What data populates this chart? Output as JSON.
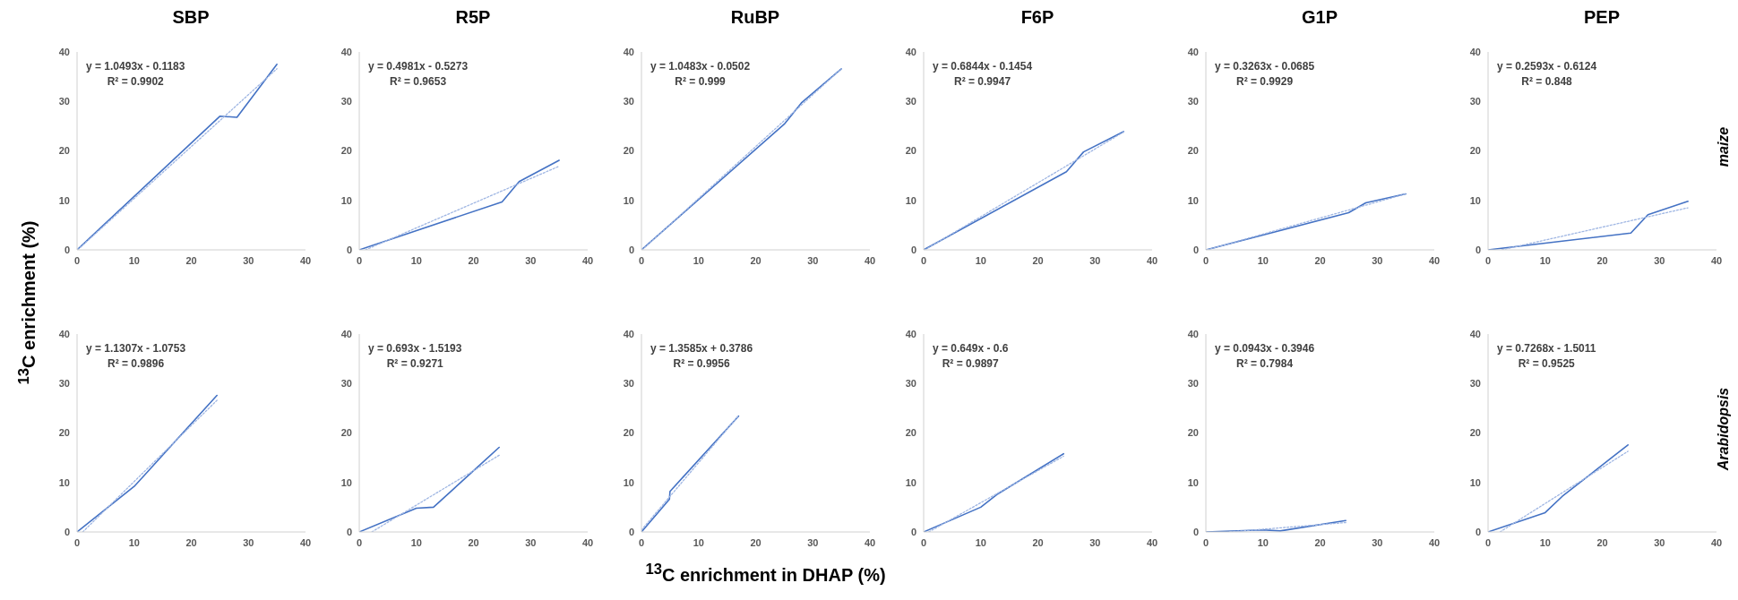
{
  "chart_data": [
    {
      "type": "line",
      "title": "SBP",
      "ylabel": "$^{13}$C enrichment (%)",
      "xlim": [
        0,
        40
      ],
      "xticks": [
        0,
        10,
        20,
        30,
        40
      ],
      "ylim": [
        0,
        40
      ],
      "yticks": [
        0,
        10,
        20,
        30,
        40
      ],
      "marker": "none",
      "annotations": [
        "y = 1.0493x - 0.1183",
        "R² = 0.9902"
      ],
      "series": [
        {
          "color": "#4472c4",
          "line_style": "solid",
          "x": [
            0,
            25,
            28,
            35
          ],
          "values": [
            0,
            27,
            26.8,
            37.5
          ]
        },
        {
          "color": "#9fb6e3",
          "line_style": "dotted",
          "x": [
            0.1,
            35
          ],
          "values": [
            0,
            36.6
          ]
        }
      ]
    },
    {
      "type": "line",
      "title": "R5P",
      "xlim": [
        0,
        40
      ],
      "xticks": [
        0,
        10,
        20,
        30,
        40
      ],
      "ylim": [
        0,
        40
      ],
      "yticks": [
        0,
        10,
        20,
        30,
        40
      ],
      "marker": "none",
      "annotations": [
        "y = 0.4981x - 0.5273",
        "R² = 0.9653"
      ],
      "series": [
        {
          "color": "#4472c4",
          "line_style": "solid",
          "x": [
            0,
            25,
            28,
            35
          ],
          "values": [
            0,
            9.7,
            13.8,
            18.1
          ]
        },
        {
          "color": "#9fb6e3",
          "line_style": "dotted",
          "x": [
            1.1,
            35
          ],
          "values": [
            0,
            16.9
          ]
        }
      ]
    },
    {
      "type": "line",
      "title": "RuBP",
      "xlim": [
        0,
        40
      ],
      "xticks": [
        0,
        10,
        20,
        30,
        40
      ],
      "ylim": [
        0,
        40
      ],
      "yticks": [
        0,
        10,
        20,
        30,
        40
      ],
      "marker": "none",
      "annotations": [
        "y = 1.0483x - 0.0502",
        "R² = 0.999"
      ],
      "series": [
        {
          "color": "#4472c4",
          "line_style": "solid",
          "x": [
            0,
            25,
            28,
            35
          ],
          "values": [
            0,
            25.4,
            29.7,
            36.6
          ]
        },
        {
          "color": "#9fb6e3",
          "line_style": "dotted",
          "x": [
            0.1,
            35
          ],
          "values": [
            0,
            36.6
          ]
        }
      ]
    },
    {
      "type": "line",
      "title": "F6P",
      "xlim": [
        0,
        40
      ],
      "xticks": [
        0,
        10,
        20,
        30,
        40
      ],
      "ylim": [
        0,
        40
      ],
      "yticks": [
        0,
        10,
        20,
        30,
        40
      ],
      "marker": "none",
      "annotations": [
        "y = 0.6844x - 0.1454",
        "R² = 0.9947"
      ],
      "series": [
        {
          "color": "#4472c4",
          "line_style": "solid",
          "x": [
            0,
            25,
            28,
            35
          ],
          "values": [
            0,
            15.8,
            19.8,
            23.9
          ]
        },
        {
          "color": "#9fb6e3",
          "line_style": "dotted",
          "x": [
            0.2,
            35
          ],
          "values": [
            0,
            23.8
          ]
        }
      ]
    },
    {
      "type": "line",
      "title": "G1P",
      "xlim": [
        0,
        40
      ],
      "xticks": [
        0,
        10,
        20,
        30,
        40
      ],
      "ylim": [
        0,
        40
      ],
      "yticks": [
        0,
        10,
        20,
        30,
        40
      ],
      "marker": "none",
      "annotations": [
        "y = 0.3263x - 0.0685",
        "R² = 0.9929"
      ],
      "series": [
        {
          "color": "#4472c4",
          "line_style": "solid",
          "x": [
            0,
            25,
            28,
            35
          ],
          "values": [
            0,
            7.5,
            9.5,
            11.3
          ]
        },
        {
          "color": "#9fb6e3",
          "line_style": "dotted",
          "x": [
            0.2,
            35
          ],
          "values": [
            0,
            11.3
          ]
        }
      ]
    },
    {
      "type": "line",
      "title": "PEP",
      "y2label": "maize",
      "xlim": [
        0,
        40
      ],
      "xticks": [
        0,
        10,
        20,
        30,
        40
      ],
      "ylim": [
        0,
        40
      ],
      "yticks": [
        0,
        10,
        20,
        30,
        40
      ],
      "marker": "none",
      "annotations": [
        "y = 0.2593x - 0.6124",
        "R² = 0.848"
      ],
      "series": [
        {
          "color": "#4472c4",
          "line_style": "solid",
          "x": [
            0,
            25,
            28,
            35
          ],
          "values": [
            0,
            3.4,
            7.1,
            9.8
          ]
        },
        {
          "color": "#9fb6e3",
          "line_style": "dotted",
          "x": [
            2.4,
            35
          ],
          "values": [
            0,
            8.5
          ]
        }
      ]
    },
    {
      "type": "line",
      "xlim": [
        0,
        40
      ],
      "xticks": [
        0,
        10,
        20,
        30,
        40
      ],
      "ylim": [
        0,
        40
      ],
      "yticks": [
        0,
        10,
        20,
        30,
        40
      ],
      "marker": "none",
      "annotations": [
        "y = 1.1307x - 1.0753",
        "R² = 0.9896"
      ],
      "series": [
        {
          "color": "#4472c4",
          "line_style": "solid",
          "x": [
            0,
            10,
            13,
            24.5
          ],
          "values": [
            0,
            9.2,
            13,
            27.6
          ]
        },
        {
          "color": "#9fb6e3",
          "line_style": "dotted",
          "x": [
            1,
            24.5
          ],
          "values": [
            0,
            26.6
          ]
        }
      ]
    },
    {
      "type": "line",
      "xlim": [
        0,
        40
      ],
      "xticks": [
        0,
        10,
        20,
        30,
        40
      ],
      "ylim": [
        0,
        40
      ],
      "yticks": [
        0,
        10,
        20,
        30,
        40
      ],
      "marker": "none",
      "annotations": [
        "y = 0.693x - 1.5193",
        "R² = 0.9271"
      ],
      "series": [
        {
          "color": "#4472c4",
          "line_style": "solid",
          "x": [
            0,
            10,
            13,
            24.5
          ],
          "values": [
            0,
            4.8,
            5,
            17.1
          ]
        },
        {
          "color": "#9fb6e3",
          "line_style": "dotted",
          "x": [
            2.2,
            24.5
          ],
          "values": [
            0,
            15.5
          ]
        }
      ]
    },
    {
      "type": "line",
      "xlabel": "$^{13}$C enrichment in DHAP (%)",
      "xlim": [
        0,
        40
      ],
      "xticks": [
        0,
        10,
        20,
        30,
        40
      ],
      "ylim": [
        0,
        40
      ],
      "yticks": [
        0,
        10,
        20,
        30,
        40
      ],
      "marker": "none",
      "annotations": [
        "y = 1.3585x + 0.3786",
        "R² = 0.9956"
      ],
      "series": [
        {
          "color": "#4472c4",
          "line_style": "solid",
          "x": [
            0,
            4.9,
            5,
            17
          ],
          "values": [
            0,
            6.6,
            8.2,
            23.4
          ]
        },
        {
          "color": "#9fb6e3",
          "line_style": "dotted",
          "x": [
            0,
            17
          ],
          "values": [
            0.4,
            23.5
          ]
        }
      ]
    },
    {
      "type": "line",
      "xlim": [
        0,
        40
      ],
      "xticks": [
        0,
        10,
        20,
        30,
        40
      ],
      "ylim": [
        0,
        40
      ],
      "yticks": [
        0,
        10,
        20,
        30,
        40
      ],
      "marker": "none",
      "annotations": [
        "y = 0.649x - 0.6",
        "R² = 0.9897"
      ],
      "series": [
        {
          "color": "#4472c4",
          "line_style": "solid",
          "x": [
            0,
            10,
            13,
            24.5
          ],
          "values": [
            0,
            5,
            7.7,
            15.8
          ]
        },
        {
          "color": "#9fb6e3",
          "line_style": "dotted",
          "x": [
            0.9,
            24.5
          ],
          "values": [
            0,
            15.3
          ]
        }
      ]
    },
    {
      "type": "line",
      "xlim": [
        0,
        40
      ],
      "xticks": [
        0,
        10,
        20,
        30,
        40
      ],
      "ylim": [
        0,
        40
      ],
      "yticks": [
        0,
        10,
        20,
        30,
        40
      ],
      "marker": "none",
      "annotations": [
        "y = 0.0943x - 0.3946",
        "R² = 0.7984"
      ],
      "series": [
        {
          "color": "#4472c4",
          "line_style": "solid",
          "x": [
            0,
            10,
            13,
            24.5
          ],
          "values": [
            0,
            0.4,
            0.2,
            2.3
          ]
        },
        {
          "color": "#9fb6e3",
          "line_style": "dotted",
          "x": [
            4.2,
            24.5
          ],
          "values": [
            0,
            1.9
          ]
        }
      ]
    },
    {
      "type": "line",
      "y2label": "Arabidopsis",
      "xlim": [
        0,
        40
      ],
      "xticks": [
        0,
        10,
        20,
        30,
        40
      ],
      "ylim": [
        0,
        40
      ],
      "yticks": [
        0,
        10,
        20,
        30,
        40
      ],
      "marker": "none",
      "annotations": [
        "y = 0.7268x - 1.5011",
        "R² = 0.9525"
      ],
      "series": [
        {
          "color": "#4472c4",
          "line_style": "solid",
          "x": [
            0,
            10,
            13,
            24.5
          ],
          "values": [
            0,
            3.9,
            7.2,
            17.6
          ]
        },
        {
          "color": "#9fb6e3",
          "line_style": "dotted",
          "x": [
            2.1,
            24.5
          ],
          "values": [
            0,
            16.3
          ]
        }
      ]
    }
  ]
}
